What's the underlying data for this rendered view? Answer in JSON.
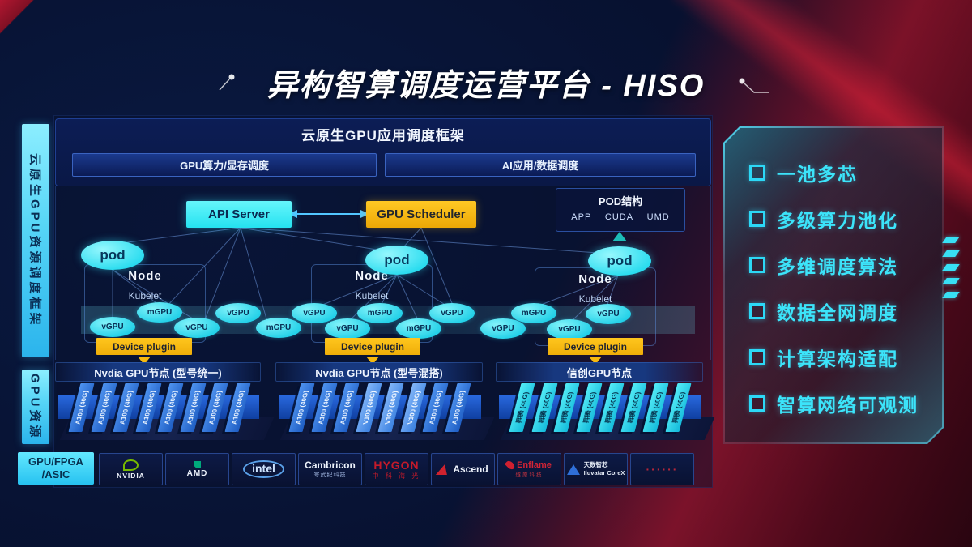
{
  "title": "异构智算调度运营平台 - HISO",
  "left_rails": {
    "framework": "云原生GPU资源调度框架",
    "resource": "GPU资源"
  },
  "app_frame": {
    "title": "云原生GPU应用调度框架",
    "bar_left": "GPU算力/显存调度",
    "bar_right": "AI应用/数据调度"
  },
  "control": {
    "api_server": "API Server",
    "gpu_scheduler": "GPU Scheduler"
  },
  "pod_struct": {
    "title": "POD结构",
    "items": [
      "APP",
      "CUDA",
      "UMD"
    ]
  },
  "node_label": "Node",
  "kubelet_label": "Kubelet",
  "pod_label": "pod",
  "device_plugin_label": "Device plugin",
  "ellipses": [
    "vGPU",
    "mGPU",
    "vGPU",
    "vGPU",
    "mGPU",
    "vGPU",
    "vGPU",
    "mGPU",
    "mGPU",
    "vGPU",
    "vGPU",
    "mGPU",
    "vGPU",
    "vGPU"
  ],
  "gpu_sections": [
    {
      "header": "Nvdia GPU节点 (型号统一)",
      "cards": [
        "A100 (40G)",
        "A100 (40G)",
        "A100 (40G)",
        "A100 (40G)",
        "A100 (40G)",
        "A100 (40G)",
        "A100 (40G)",
        "A100 (40G)"
      ]
    },
    {
      "header": "Nvdia GPU节点 (型号混搭)",
      "cards": [
        "A100 (40G)",
        "A100 (40G)",
        "A100 (40G)",
        "V100 (40G)",
        "V100 (40G)",
        "V100 (40G)",
        "A100 (40G)",
        "A100 (40G)"
      ]
    },
    {
      "header": "信创GPU节点",
      "cards": [
        "昇腾 (40G)",
        "昇腾 (40G)",
        "昇腾 (40G)",
        "昇腾 (40G)",
        "昇腾 (40G)",
        "昇腾 (40G)",
        "昇腾 (40G)",
        "昇腾 (40G)"
      ]
    }
  ],
  "vendor_bar": {
    "label_line1": "GPU/FPGA",
    "label_line2": "/ASIC",
    "vendors": [
      {
        "name": "NVIDIA"
      },
      {
        "name": "AMD"
      },
      {
        "name": "intel"
      },
      {
        "name": "Cambricon",
        "sub": "寒武纪科技"
      },
      {
        "name": "HYGON",
        "sub": "中 科 海 光"
      },
      {
        "name": "Ascend"
      },
      {
        "name": "Enflame",
        "sub": "燧原科技"
      },
      {
        "name": "天数智芯",
        "sub": "Iluvatar CoreX"
      },
      {
        "name": "······"
      }
    ]
  },
  "features": [
    "一池多芯",
    "多级算力池化",
    "多维调度算法",
    "数据全网调度",
    "计算架构适配",
    "智算网络可观测"
  ],
  "colors": {
    "accent_cyan": "#3ce9f7",
    "accent_yellow": "#f6b90f",
    "bg_navy": "#071130",
    "accent_red": "#b41327",
    "card_blue": "#2f7ae0"
  }
}
